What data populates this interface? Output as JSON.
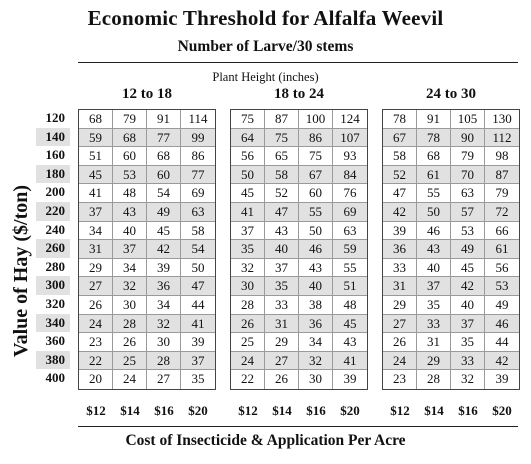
{
  "title": "Economic Threshold for Alfalfa Weevil",
  "subtitle": "Number of Larve/30 stems",
  "plant_height_label": "Plant Height (inches)",
  "y_axis_label": "Value of Hay ($/ton)",
  "x_axis_label": "Cost of Insecticide & Application Per Acre",
  "row_labels": [
    "120",
    "140",
    "160",
    "180",
    "200",
    "220",
    "240",
    "260",
    "280",
    "300",
    "320",
    "340",
    "360",
    "380",
    "400"
  ],
  "cost_labels": [
    "$12",
    "$14",
    "$16",
    "$20"
  ],
  "groups": [
    {
      "label": "12 to 18",
      "rows": [
        [
          "68",
          "79",
          "91",
          "114"
        ],
        [
          "59",
          "68",
          "77",
          "99"
        ],
        [
          "51",
          "60",
          "68",
          "86"
        ],
        [
          "45",
          "53",
          "60",
          "77"
        ],
        [
          "41",
          "48",
          "54",
          "69"
        ],
        [
          "37",
          "43",
          "49",
          "63"
        ],
        [
          "34",
          "40",
          "45",
          "58"
        ],
        [
          "31",
          "37",
          "42",
          "54"
        ],
        [
          "29",
          "34",
          "39",
          "50"
        ],
        [
          "27",
          "32",
          "36",
          "47"
        ],
        [
          "26",
          "30",
          "34",
          "44"
        ],
        [
          "24",
          "28",
          "32",
          "41"
        ],
        [
          "23",
          "26",
          "30",
          "39"
        ],
        [
          "22",
          "25",
          "28",
          "37"
        ],
        [
          "20",
          "24",
          "27",
          "35"
        ]
      ]
    },
    {
      "label": "18 to 24",
      "rows": [
        [
          "75",
          "87",
          "100",
          "124"
        ],
        [
          "64",
          "75",
          "86",
          "107"
        ],
        [
          "56",
          "65",
          "75",
          "93"
        ],
        [
          "50",
          "58",
          "67",
          "84"
        ],
        [
          "45",
          "52",
          "60",
          "76"
        ],
        [
          "41",
          "47",
          "55",
          "69"
        ],
        [
          "37",
          "43",
          "50",
          "63"
        ],
        [
          "35",
          "40",
          "46",
          "59"
        ],
        [
          "32",
          "37",
          "43",
          "55"
        ],
        [
          "30",
          "35",
          "40",
          "51"
        ],
        [
          "28",
          "33",
          "38",
          "48"
        ],
        [
          "26",
          "31",
          "36",
          "45"
        ],
        [
          "25",
          "29",
          "34",
          "43"
        ],
        [
          "24",
          "27",
          "32",
          "41"
        ],
        [
          "22",
          "26",
          "30",
          "39"
        ]
      ]
    },
    {
      "label": "24 to 30",
      "rows": [
        [
          "78",
          "91",
          "105",
          "130"
        ],
        [
          "67",
          "78",
          "90",
          "112"
        ],
        [
          "58",
          "68",
          "79",
          "98"
        ],
        [
          "52",
          "61",
          "70",
          "87"
        ],
        [
          "47",
          "55",
          "63",
          "79"
        ],
        [
          "42",
          "50",
          "57",
          "72"
        ],
        [
          "39",
          "46",
          "53",
          "66"
        ],
        [
          "36",
          "43",
          "49",
          "61"
        ],
        [
          "33",
          "40",
          "45",
          "56"
        ],
        [
          "31",
          "37",
          "42",
          "53"
        ],
        [
          "29",
          "35",
          "40",
          "49"
        ],
        [
          "27",
          "33",
          "37",
          "46"
        ],
        [
          "26",
          "31",
          "35",
          "44"
        ],
        [
          "24",
          "29",
          "33",
          "42"
        ],
        [
          "23",
          "28",
          "32",
          "39"
        ]
      ]
    }
  ],
  "shade_color": "#e1e1e1"
}
